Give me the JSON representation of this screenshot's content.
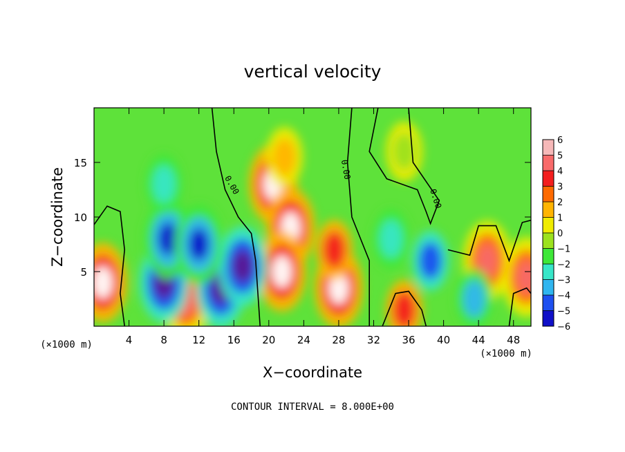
{
  "chart_data": {
    "type": "heatmap",
    "title": "vertical velocity",
    "xlabel": "X−coordinate",
    "ylabel": "Z−coordinate",
    "x_unit": "(×1000 m)",
    "z_unit": "(×1000 m)",
    "xlim": [
      0,
      50
    ],
    "ylim": [
      0,
      20
    ],
    "x_ticks": [
      4,
      8,
      12,
      16,
      20,
      24,
      28,
      32,
      36,
      40,
      44,
      48
    ],
    "y_ticks": [
      5,
      10,
      15
    ],
    "x_tick_labels": [
      "4",
      "8",
      "12",
      "16",
      "20",
      "24",
      "28",
      "32",
      "36",
      "40",
      "44",
      "48"
    ],
    "y_tick_labels": [
      "5",
      "10",
      "15"
    ],
    "colorbar": {
      "levels": [
        6,
        5,
        4,
        3,
        2,
        1,
        0,
        -1,
        -2,
        -3,
        -4,
        -5,
        -6
      ],
      "labels": [
        "6",
        "5",
        "4",
        "3",
        "2",
        "1",
        "0",
        "−1",
        "−2",
        "−3",
        "−4",
        "−5",
        "−6"
      ],
      "colors": [
        "#f6b8b8",
        "#f86a6a",
        "#f31e1e",
        "#fe6a00",
        "#ffb400",
        "#f0ec00",
        "#9ce21e",
        "#3ee838",
        "#37e6c8",
        "#30b6f0",
        "#1e50f0",
        "#1010c8",
        "#5a1690"
      ]
    },
    "contour_label": "0.00",
    "note": "CONTOUR INTERVAL = 8.000E+00",
    "field": [
      {
        "x": 20.5,
        "z": 13.0,
        "value": 6
      },
      {
        "x": 22.5,
        "z": 9.0,
        "value": 6
      },
      {
        "x": 21.5,
        "z": 5.0,
        "value": 6
      },
      {
        "x": 28.0,
        "z": 3.5,
        "value": 6
      },
      {
        "x": 1.0,
        "z": 4.0,
        "value": 6
      },
      {
        "x": 49.5,
        "z": 4.5,
        "value": 5
      },
      {
        "x": 10.5,
        "z": 2.5,
        "value": 5
      },
      {
        "x": 35.5,
        "z": 1.5,
        "value": 4
      },
      {
        "x": 45.0,
        "z": 6.0,
        "value": 5
      },
      {
        "x": 27.5,
        "z": 7.0,
        "value": 4
      },
      {
        "x": 21.8,
        "z": 15.5,
        "value": 2
      },
      {
        "x": 8.0,
        "z": 4.0,
        "value": -6
      },
      {
        "x": 8.5,
        "z": 8.0,
        "value": -5
      },
      {
        "x": 14.5,
        "z": 3.5,
        "value": -6
      },
      {
        "x": 17.0,
        "z": 5.5,
        "value": -6
      },
      {
        "x": 12.0,
        "z": 7.5,
        "value": -5
      },
      {
        "x": 8.0,
        "z": 13.0,
        "value": -2
      },
      {
        "x": 34.0,
        "z": 8.0,
        "value": -2
      },
      {
        "x": 38.5,
        "z": 6.0,
        "value": -4
      },
      {
        "x": 43.5,
        "z": 2.5,
        "value": -3
      },
      {
        "x": 35.5,
        "z": 16.0,
        "value": 0
      }
    ]
  }
}
